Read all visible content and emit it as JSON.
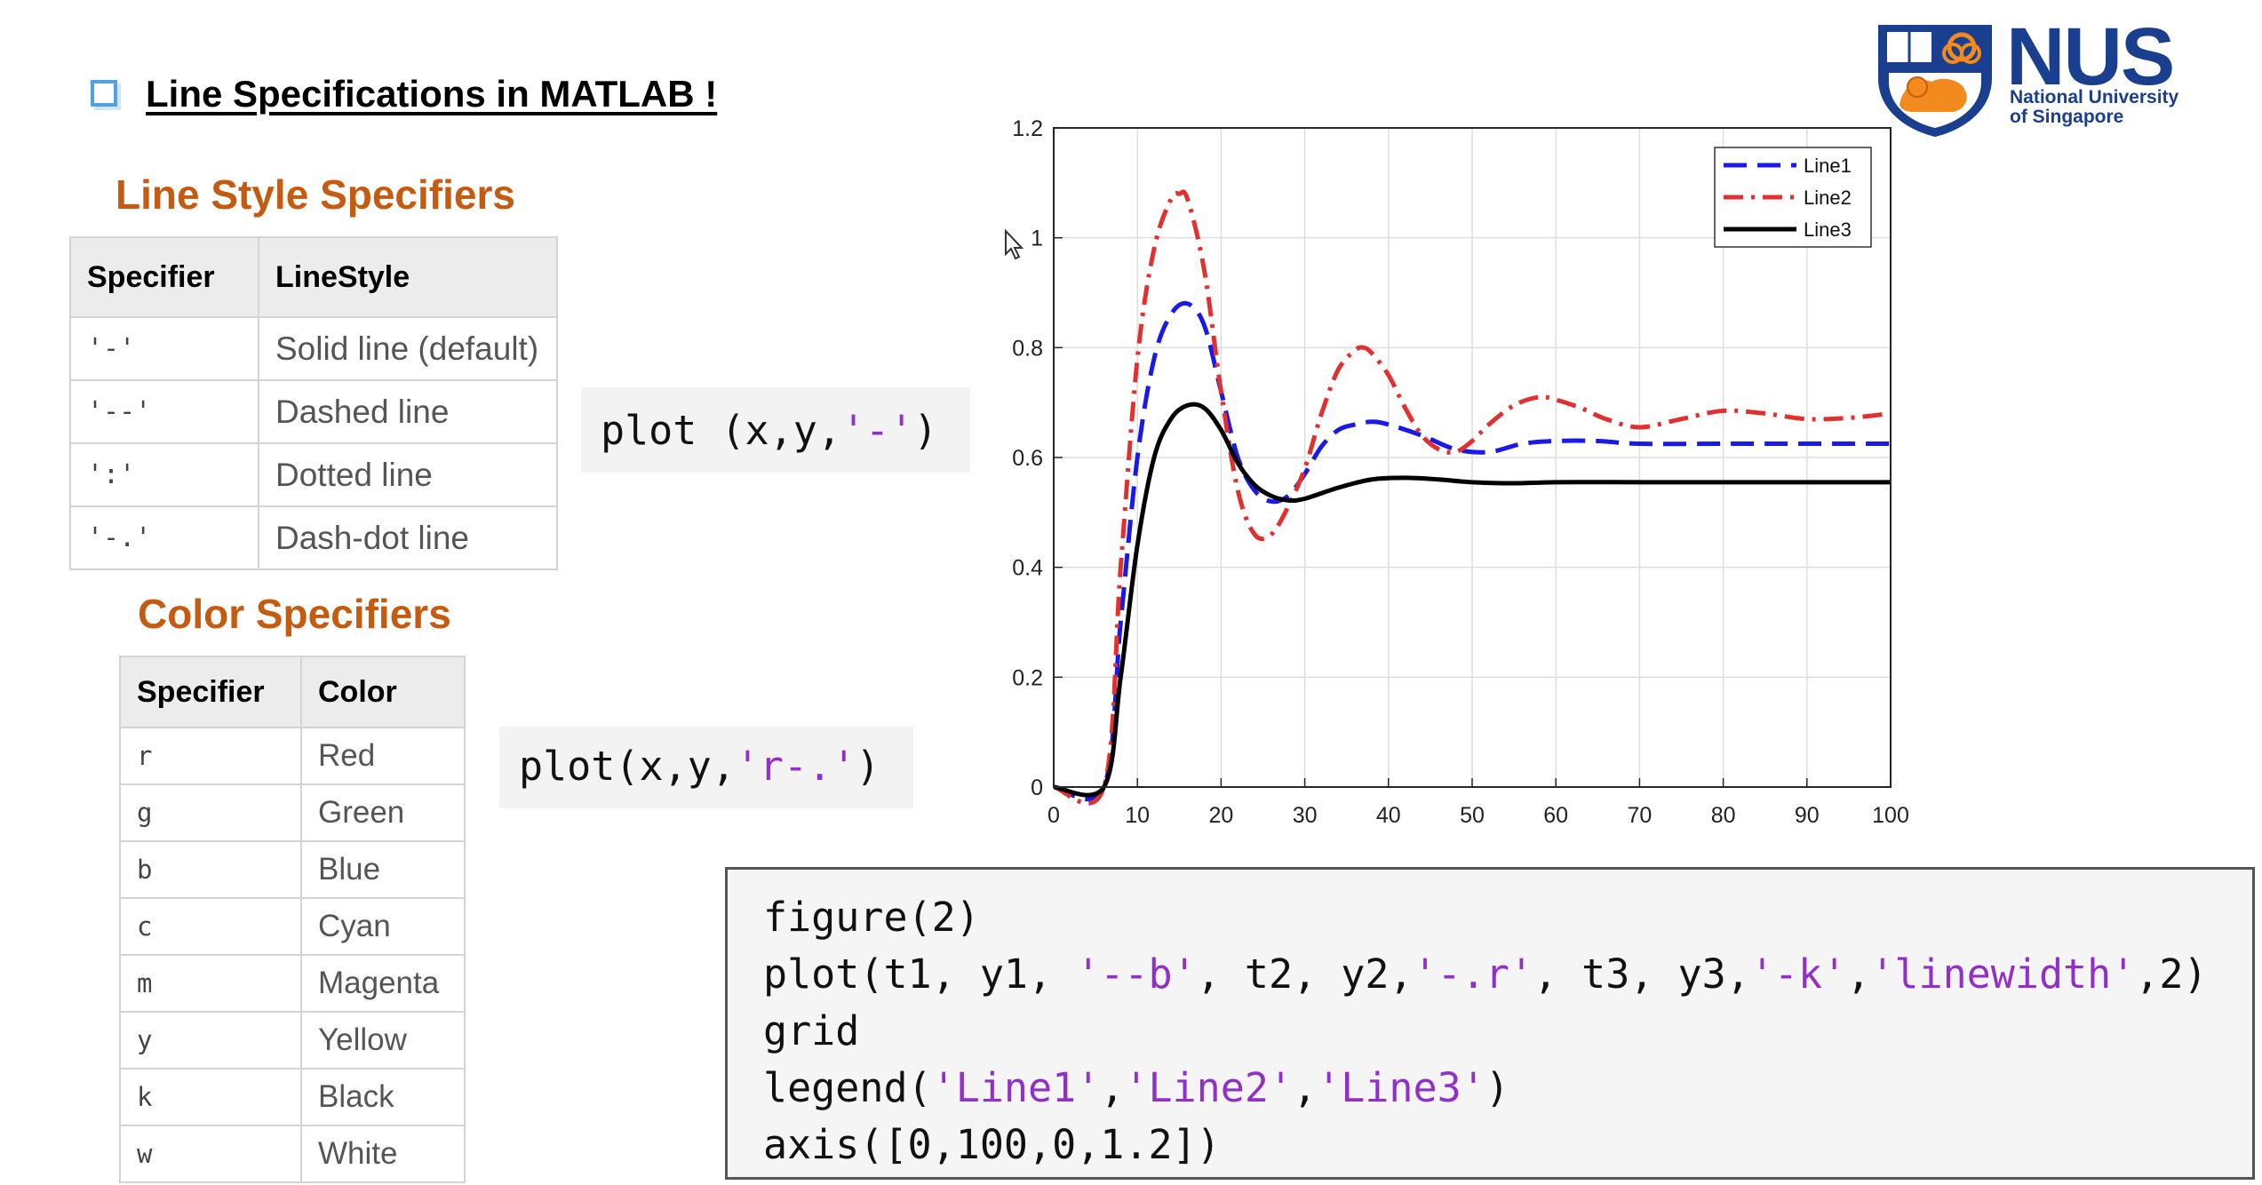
{
  "heading": {
    "title": "Line Specifications in MATLAB !"
  },
  "line_style": {
    "heading": "Line Style Specifiers",
    "headers": [
      "Specifier",
      "LineStyle"
    ],
    "rows": [
      [
        "'-'",
        "Solid line (default)"
      ],
      [
        "'--'",
        "Dashed line"
      ],
      [
        "':'",
        "Dotted line"
      ],
      [
        "'-.'",
        "Dash-dot line"
      ]
    ],
    "example": {
      "prefix": "plot (x,y,",
      "arg": "'-'",
      "suffix": ")"
    }
  },
  "color": {
    "heading": "Color Specifiers",
    "headers": [
      "Specifier",
      "Color"
    ],
    "rows": [
      [
        "r",
        "Red"
      ],
      [
        "g",
        "Green"
      ],
      [
        "b",
        "Blue"
      ],
      [
        "c",
        "Cyan"
      ],
      [
        "m",
        "Magenta"
      ],
      [
        "y",
        "Yellow"
      ],
      [
        "k",
        "Black"
      ],
      [
        "w",
        "White"
      ]
    ],
    "example": {
      "prefix": "plot(x,y,",
      "arg": "'r-.'",
      "suffix": ")"
    }
  },
  "code_block": {
    "line1": "figure(2)",
    "line2": {
      "p1": "plot(t1, y1, ",
      "s1": "'--b'",
      "p2": ", t2, y2,",
      "s2": "'-.r'",
      "p3": ", t3, y3,",
      "s3": "'-k'",
      "p4": ",",
      "s4": "'linewidth'",
      "p5": ",2)"
    },
    "line3": "grid",
    "line4": {
      "p1": "legend(",
      "s1": "'Line1'",
      "p2": ",",
      "s2": "'Line2'",
      "p3": ",",
      "s3": "'Line3'",
      "p4": ")"
    },
    "line5": "axis([0,100,0,1.2])"
  },
  "chart_data": {
    "type": "line",
    "xlim": [
      0,
      100
    ],
    "ylim": [
      0,
      1.2
    ],
    "xticks": [
      0,
      10,
      20,
      30,
      40,
      50,
      60,
      70,
      80,
      90,
      100
    ],
    "yticks": [
      0,
      0.2,
      0.4,
      0.6,
      0.8,
      1,
      1.2
    ],
    "ytick_labels": [
      "0",
      "0.2",
      "0.4",
      "0.6",
      "0.8",
      "1",
      "1.2"
    ],
    "grid": true,
    "legend_position": "top-right",
    "series": [
      {
        "name": "Line1",
        "color": "#1a1ae6",
        "style": "dashed",
        "x": [
          0,
          6,
          8,
          10,
          12,
          14,
          16,
          18,
          20,
          22,
          24,
          26,
          28,
          30,
          32,
          34,
          36,
          38,
          40,
          44,
          48,
          52,
          56,
          60,
          65,
          70,
          80,
          90,
          100
        ],
        "y": [
          0,
          0,
          0.3,
          0.6,
          0.78,
          0.86,
          0.88,
          0.84,
          0.72,
          0.6,
          0.54,
          0.52,
          0.53,
          0.57,
          0.62,
          0.65,
          0.66,
          0.665,
          0.66,
          0.64,
          0.615,
          0.61,
          0.625,
          0.63,
          0.63,
          0.625,
          0.625,
          0.625,
          0.625
        ]
      },
      {
        "name": "Line2",
        "color": "#e03030",
        "style": "dashdot",
        "x": [
          0,
          6,
          8,
          10,
          12,
          14,
          15,
          16,
          18,
          20,
          22,
          24,
          26,
          28,
          30,
          32,
          34,
          36,
          37,
          38,
          40,
          42,
          44,
          46,
          48,
          50,
          52,
          55,
          58,
          60,
          63,
          66,
          70,
          75,
          80,
          85,
          90,
          95,
          100
        ],
        "y": [
          0,
          0,
          0.4,
          0.78,
          0.98,
          1.07,
          1.08,
          1.07,
          0.94,
          0.72,
          0.54,
          0.46,
          0.46,
          0.51,
          0.58,
          0.68,
          0.76,
          0.795,
          0.8,
          0.79,
          0.75,
          0.69,
          0.64,
          0.615,
          0.61,
          0.63,
          0.66,
          0.695,
          0.71,
          0.705,
          0.69,
          0.67,
          0.655,
          0.67,
          0.685,
          0.68,
          0.67,
          0.672,
          0.68
        ]
      },
      {
        "name": "Line3",
        "color": "#000000",
        "style": "solid",
        "x": [
          0,
          6,
          8,
          10,
          12,
          14,
          16,
          18,
          20,
          22,
          24,
          26,
          28,
          30,
          34,
          38,
          42,
          46,
          50,
          55,
          60,
          70,
          80,
          90,
          100
        ],
        "y": [
          0,
          0,
          0.2,
          0.44,
          0.6,
          0.67,
          0.695,
          0.69,
          0.65,
          0.59,
          0.55,
          0.53,
          0.522,
          0.525,
          0.545,
          0.56,
          0.563,
          0.56,
          0.555,
          0.553,
          0.555,
          0.555,
          0.555,
          0.555,
          0.555
        ]
      }
    ]
  },
  "logo": {
    "text": "NUS",
    "sub1": "National University",
    "sub2": "of Singapore"
  }
}
